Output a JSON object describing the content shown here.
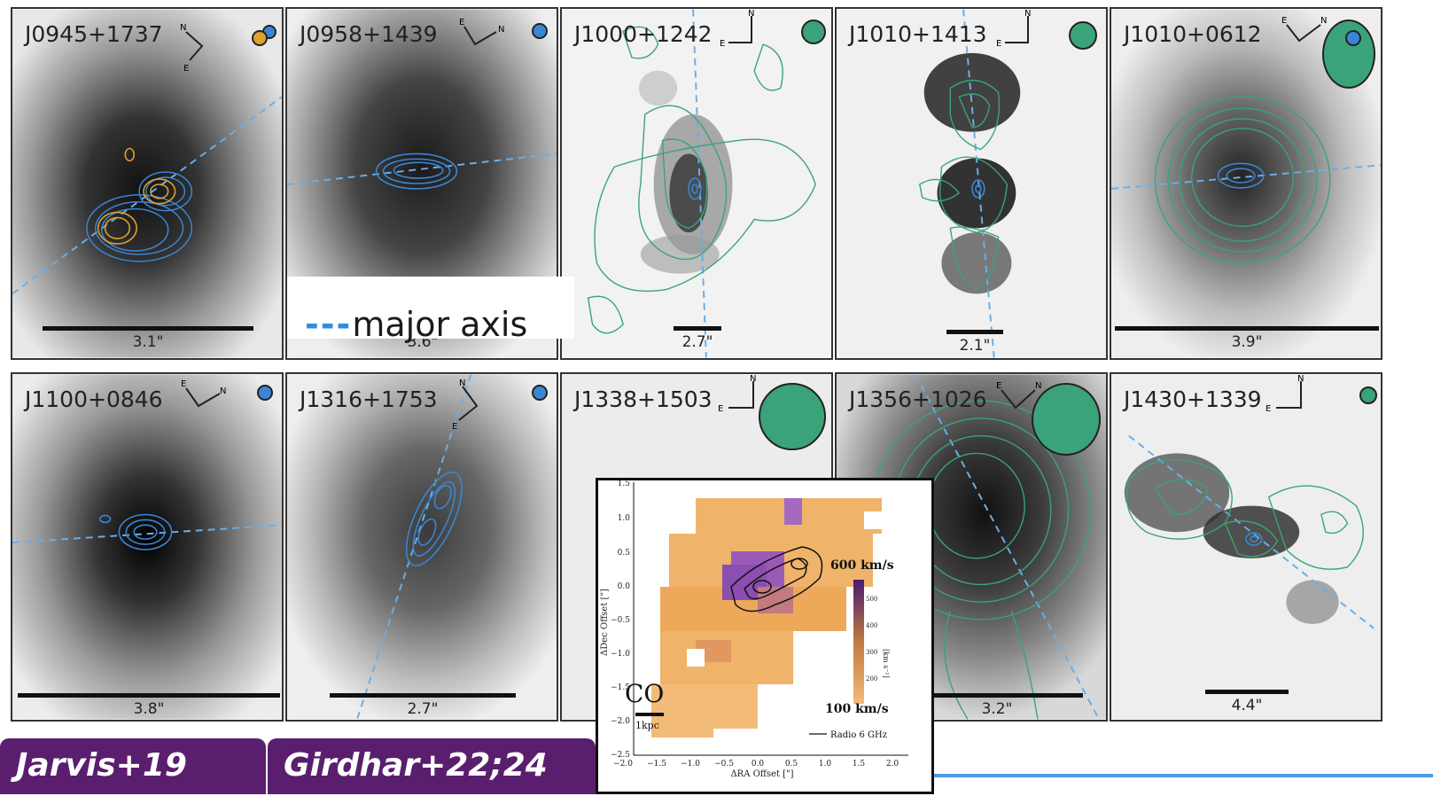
{
  "panels": [
    {
      "name": "J0945+1737",
      "scale": "3.1\"",
      "beam": "orange-blue",
      "compass": "N-E tilted",
      "contours": "blue-orange"
    },
    {
      "name": "J0958+1439",
      "scale": "3.6\"",
      "beam": "blue",
      "compass": "E-N",
      "contours": "blue"
    },
    {
      "name": "J1000+1242",
      "scale": "2.7\"",
      "beam": "green",
      "compass": "N-E",
      "contours": "green"
    },
    {
      "name": "J1010+1413",
      "scale": "2.1\"",
      "beam": "green",
      "compass": "N-E",
      "contours": "green"
    },
    {
      "name": "J1010+0612",
      "scale": "3.9\"",
      "beam": "green",
      "compass": "E-N",
      "contours": "green"
    },
    {
      "name": "J1100+0846",
      "scale": "3.8\"",
      "beam": "blue",
      "compass": "E-N",
      "contours": "blue"
    },
    {
      "name": "J1316+1753",
      "scale": "2.7\"",
      "beam": "blue",
      "compass": "N-E",
      "contours": "blue"
    },
    {
      "name": "J1338+1503",
      "scale": "",
      "beam": "green",
      "compass": "N-E",
      "contours": "none"
    },
    {
      "name": "J1356+1026",
      "scale": "3.2\"",
      "beam": "green",
      "compass": "E-N",
      "contours": "green"
    },
    {
      "name": "J1430+1339",
      "scale": "4.4\"",
      "beam": "green",
      "compass": "N-E",
      "contours": "green"
    }
  ],
  "compass_labels": {
    "n": "N",
    "e": "E"
  },
  "legend": {
    "dash": "---",
    "label": "major axis"
  },
  "references": {
    "left": "Jarvis+19",
    "right": "Girdhar+22;24"
  },
  "inset": {
    "tracer_label": "CO",
    "scale_label": "1kpc",
    "vmax_label": "600 km/s",
    "vmin_label": "100 km/s",
    "legend_label": "Radio 6 GHz",
    "xlabel": "ΔRA Offset [\"]",
    "ylabel": "ΔDec Offset [\"]",
    "colorbar_label": "[km s⁻¹]",
    "xticks": [
      "−2.0",
      "−1.5",
      "−1.0",
      "−0.5",
      "0.0",
      "0.5",
      "1.0",
      "1.5",
      "2.0"
    ],
    "yticks": [
      "1.5",
      "1.0",
      "0.5",
      "0.0",
      "−0.5",
      "−1.0",
      "−1.5",
      "−2.0",
      "−2.5"
    ],
    "cbticks": [
      "500",
      "400",
      "300",
      "200"
    ]
  },
  "colors": {
    "contour_blue": "#3a86d4",
    "contour_orange": "#e0a030",
    "contour_green": "#3aa37a",
    "axis_dash": "#6aaee8",
    "banner": "#5a1e6e",
    "co_orange": "#f0b36a",
    "co_purple": "#8a4fb0"
  }
}
